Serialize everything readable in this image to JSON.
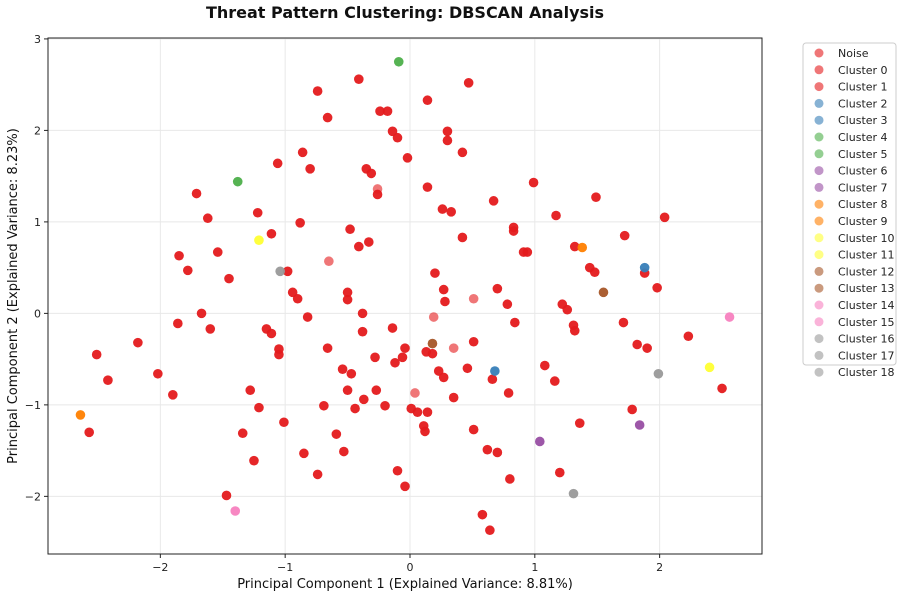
{
  "chart_data": {
    "type": "scatter",
    "title": "Threat Pattern Clustering: DBSCAN Analysis",
    "xlabel": "Principal Component 1 (Explained Variance: 8.81%)",
    "ylabel": "Principal Component 2 (Explained Variance: 8.23%)",
    "xlim": [
      -2.9,
      2.82
    ],
    "ylim": [
      -2.63,
      3.01
    ],
    "xticks": [
      -2,
      -1,
      0,
      1,
      2
    ],
    "yticks": [
      -2,
      -1,
      0,
      1,
      2,
      3
    ],
    "xtick_labels": [
      "−2",
      "−1",
      "0",
      "1",
      "2"
    ],
    "ytick_labels": [
      "−2",
      "−1",
      "0",
      "1",
      "2",
      "3"
    ],
    "grid": true,
    "legend_position": "outside-right",
    "series": [
      {
        "name": "Noise",
        "color": "#e41a1c",
        "points": [
          [
            -0.65,
            0.57
          ],
          [
            -0.26,
            1.36
          ],
          [
            0.04,
            -0.87
          ],
          [
            0.19,
            -0.04
          ],
          [
            0.35,
            -0.38
          ],
          [
            0.51,
            0.16
          ]
        ]
      },
      {
        "name": "Cluster 0",
        "color": "#e41a1c",
        "points": [
          [
            -2.51,
            -0.45
          ],
          [
            -2.42,
            -0.73
          ],
          [
            -2.57,
            -1.3
          ],
          [
            -2.18,
            -0.32
          ],
          [
            -2.02,
            -0.66
          ],
          [
            -1.9,
            -0.89
          ],
          [
            -1.85,
            0.63
          ],
          [
            -1.86,
            -0.11
          ],
          [
            -1.78,
            0.47
          ],
          [
            -1.71,
            1.31
          ],
          [
            -1.67,
            0.0
          ],
          [
            -1.62,
            1.04
          ],
          [
            -1.6,
            -0.17
          ],
          [
            -1.54,
            0.67
          ],
          [
            -1.47,
            -1.99
          ],
          [
            -1.45,
            0.38
          ],
          [
            -1.34,
            -1.31
          ],
          [
            -1.28,
            -0.84
          ],
          [
            -1.25,
            -1.61
          ],
          [
            -1.22,
            1.1
          ],
          [
            -1.21,
            -1.03
          ],
          [
            -1.15,
            -0.17
          ],
          [
            -1.11,
            0.87
          ],
          [
            -1.11,
            -0.22
          ],
          [
            -1.05,
            -0.45
          ],
          [
            -1.05,
            -0.39
          ],
          [
            -1.06,
            1.64
          ],
          [
            -1.01,
            -1.19
          ],
          [
            -0.98,
            0.46
          ],
          [
            -0.94,
            0.23
          ],
          [
            -0.9,
            0.16
          ],
          [
            -0.88,
            0.99
          ],
          [
            -0.86,
            1.76
          ],
          [
            -0.85,
            -1.53
          ],
          [
            -0.82,
            -0.04
          ],
          [
            -0.8,
            1.58
          ],
          [
            -0.74,
            2.43
          ],
          [
            -0.74,
            -1.76
          ],
          [
            -0.69,
            -1.01
          ],
          [
            -0.66,
            2.14
          ],
          [
            -0.66,
            -0.38
          ],
          [
            -0.59,
            -1.32
          ],
          [
            -0.54,
            -0.61
          ],
          [
            -0.53,
            -1.51
          ],
          [
            -0.5,
            -0.84
          ],
          [
            -0.5,
            0.15
          ],
          [
            -0.5,
            0.23
          ],
          [
            -0.48,
            0.92
          ],
          [
            -0.47,
            -0.66
          ],
          [
            -0.44,
            -1.04
          ],
          [
            -0.41,
            2.56
          ],
          [
            -0.41,
            0.73
          ],
          [
            -0.38,
            0.0
          ],
          [
            -0.38,
            -0.2
          ],
          [
            -0.37,
            -0.94
          ],
          [
            -0.35,
            1.58
          ],
          [
            -0.33,
            0.78
          ],
          [
            -0.31,
            1.53
          ],
          [
            -0.28,
            -0.48
          ],
          [
            -0.27,
            -0.84
          ],
          [
            -0.26,
            1.3
          ],
          [
            -0.24,
            2.21
          ],
          [
            -0.2,
            -1.01
          ],
          [
            -0.18,
            2.21
          ],
          [
            -0.14,
            1.99
          ],
          [
            -0.14,
            -0.16
          ],
          [
            -0.12,
            -0.54
          ],
          [
            -0.1,
            -1.72
          ],
          [
            -0.1,
            1.92
          ],
          [
            -0.06,
            -0.48
          ],
          [
            -0.04,
            -1.89
          ],
          [
            -0.04,
            -0.38
          ],
          [
            -0.02,
            1.7
          ],
          [
            0.01,
            -1.04
          ],
          [
            0.06,
            -1.08
          ],
          [
            0.11,
            -1.23
          ],
          [
            0.12,
            -1.29
          ],
          [
            0.13,
            -0.42
          ],
          [
            0.14,
            -1.08
          ],
          [
            0.14,
            2.33
          ],
          [
            0.14,
            1.38
          ],
          [
            0.18,
            -0.44
          ],
          [
            0.2,
            0.44
          ],
          [
            0.23,
            -0.63
          ],
          [
            0.26,
            1.14
          ],
          [
            0.27,
            0.26
          ],
          [
            0.27,
            -0.7
          ],
          [
            0.28,
            0.13
          ],
          [
            0.3,
            1.89
          ],
          [
            0.3,
            1.99
          ],
          [
            0.33,
            1.11
          ],
          [
            0.35,
            -0.92
          ],
          [
            0.42,
            1.76
          ],
          [
            0.42,
            0.83
          ],
          [
            0.46,
            -0.6
          ],
          [
            0.47,
            2.52
          ],
          [
            0.51,
            -1.27
          ],
          [
            0.51,
            -0.31
          ],
          [
            0.58,
            -2.2
          ],
          [
            0.62,
            -1.49
          ],
          [
            0.64,
            -2.37
          ],
          [
            0.66,
            -0.72
          ],
          [
            0.67,
            1.23
          ],
          [
            0.7,
            0.27
          ],
          [
            0.7,
            -1.52
          ],
          [
            0.78,
            0.1
          ],
          [
            0.79,
            -0.87
          ],
          [
            0.8,
            -1.81
          ],
          [
            0.83,
            0.94
          ],
          [
            0.83,
            0.9
          ],
          [
            0.84,
            -0.1
          ],
          [
            0.91,
            0.67
          ],
          [
            0.94,
            0.67
          ],
          [
            0.99,
            1.43
          ],
          [
            1.08,
            -0.57
          ],
          [
            1.16,
            -0.74
          ],
          [
            1.17,
            1.07
          ],
          [
            1.2,
            -1.74
          ],
          [
            1.22,
            0.1
          ],
          [
            1.26,
            0.04
          ],
          [
            1.32,
            0.73
          ],
          [
            1.31,
            -0.13
          ],
          [
            1.32,
            -0.19
          ],
          [
            1.36,
            -1.2
          ],
          [
            1.44,
            0.5
          ],
          [
            1.48,
            0.45
          ],
          [
            1.49,
            1.27
          ],
          [
            1.71,
            -0.1
          ],
          [
            1.72,
            0.85
          ],
          [
            1.78,
            -1.05
          ],
          [
            1.82,
            -0.34
          ],
          [
            1.88,
            0.44
          ],
          [
            1.9,
            -0.38
          ],
          [
            1.98,
            0.28
          ],
          [
            2.04,
            1.05
          ],
          [
            2.23,
            -0.25
          ],
          [
            2.5,
            -0.82
          ]
        ]
      },
      {
        "name": "Cluster 1",
        "color": "#e41a1c",
        "points": []
      },
      {
        "name": "Cluster 2",
        "color": "#377eb8",
        "points": [
          [
            0.68,
            -0.63
          ]
        ]
      },
      {
        "name": "Cluster 3",
        "color": "#377eb8",
        "points": [
          [
            1.88,
            0.5
          ]
        ]
      },
      {
        "name": "Cluster 4",
        "color": "#4daf4a",
        "points": [
          [
            -0.09,
            2.75
          ]
        ]
      },
      {
        "name": "Cluster 5",
        "color": "#4daf4a",
        "points": [
          [
            -1.38,
            1.44
          ]
        ]
      },
      {
        "name": "Cluster 6",
        "color": "#984ea3",
        "points": [
          [
            1.04,
            -1.4
          ]
        ]
      },
      {
        "name": "Cluster 7",
        "color": "#984ea3",
        "points": [
          [
            1.84,
            -1.22
          ]
        ]
      },
      {
        "name": "Cluster 8",
        "color": "#ff7f00",
        "points": [
          [
            -2.64,
            -1.11
          ]
        ]
      },
      {
        "name": "Cluster 9",
        "color": "#ff7f00",
        "points": [
          [
            1.38,
            0.72
          ]
        ]
      },
      {
        "name": "Cluster 10",
        "color": "#ffff33",
        "points": [
          [
            -1.21,
            0.8
          ]
        ]
      },
      {
        "name": "Cluster 11",
        "color": "#ffff33",
        "points": [
          [
            2.4,
            -0.59
          ]
        ]
      },
      {
        "name": "Cluster 12",
        "color": "#a65628",
        "points": [
          [
            0.18,
            -0.33
          ]
        ]
      },
      {
        "name": "Cluster 13",
        "color": "#a65628",
        "points": [
          [
            1.55,
            0.23
          ]
        ]
      },
      {
        "name": "Cluster 14",
        "color": "#f781bf",
        "points": [
          [
            -1.4,
            -2.16
          ]
        ]
      },
      {
        "name": "Cluster 15",
        "color": "#f781bf",
        "points": [
          [
            2.56,
            -0.04
          ]
        ]
      },
      {
        "name": "Cluster 16",
        "color": "#999999",
        "points": [
          [
            -1.04,
            0.46
          ]
        ]
      },
      {
        "name": "Cluster 17",
        "color": "#999999",
        "points": [
          [
            1.99,
            -0.66
          ]
        ]
      },
      {
        "name": "Cluster 18",
        "color": "#999999",
        "points": [
          [
            1.31,
            -1.97
          ]
        ]
      }
    ]
  }
}
